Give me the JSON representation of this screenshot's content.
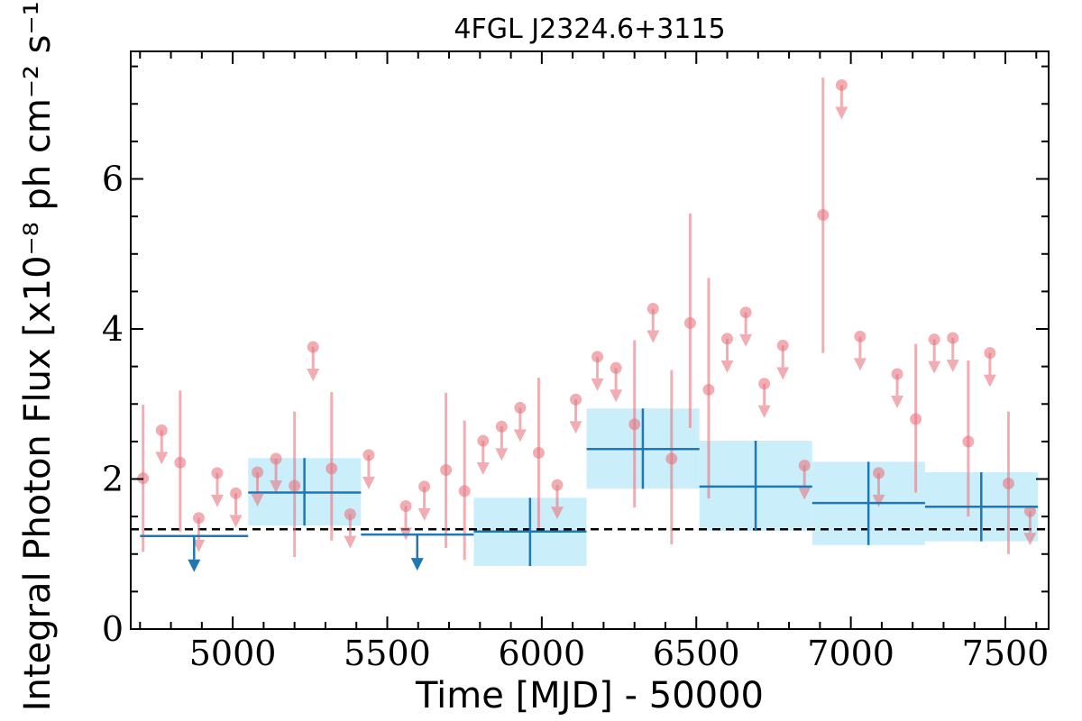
{
  "chart_data": {
    "type": "scatter",
    "title": "4FGL J2324.6+3115",
    "xlabel": "Time [MJD] - 50000",
    "ylabel": "Integral Photon Flux [x10⁻⁸ ph cm⁻² s⁻¹]",
    "xlim": [
      4670,
      7640
    ],
    "ylim": [
      0,
      7.7
    ],
    "xticks": [
      5000,
      5500,
      6000,
      6500,
      7000,
      7500
    ],
    "yticks": [
      0,
      2,
      4,
      6
    ],
    "xtick_labels": [
      "5000",
      "5500",
      "6000",
      "6500",
      "7000",
      "7500"
    ],
    "ytick_labels": [
      "0",
      "2",
      "4",
      "6"
    ],
    "grid": false,
    "legend": "none",
    "average_flux": 1.33,
    "colors": {
      "short_bins": "#e8777e",
      "long_bins": "#1f77b4",
      "long_band": "#cbeefb",
      "average_line": "#000000"
    },
    "short_bins": {
      "detections": [
        {
          "x": 4710,
          "y": 2.01,
          "y_low": 1.03,
          "y_high": 2.99
        },
        {
          "x": 4830,
          "y": 2.22,
          "y_low": 1.3,
          "y_high": 3.18
        },
        {
          "x": 5200,
          "y": 1.91,
          "y_low": 0.96,
          "y_high": 2.9
        },
        {
          "x": 5320,
          "y": 2.14,
          "y_low": 1.18,
          "y_high": 3.16
        },
        {
          "x": 5690,
          "y": 2.12,
          "y_low": 1.08,
          "y_high": 3.15
        },
        {
          "x": 5750,
          "y": 1.84,
          "y_low": 0.92,
          "y_high": 2.78
        },
        {
          "x": 5990,
          "y": 2.35,
          "y_low": 1.35,
          "y_high": 3.35
        },
        {
          "x": 6300,
          "y": 2.73,
          "y_low": 1.62,
          "y_high": 3.85
        },
        {
          "x": 6420,
          "y": 2.27,
          "y_low": 1.13,
          "y_high": 3.45
        },
        {
          "x": 6480,
          "y": 4.08,
          "y_low": 2.68,
          "y_high": 5.54
        },
        {
          "x": 6540,
          "y": 3.19,
          "y_low": 1.74,
          "y_high": 4.68
        },
        {
          "x": 6910,
          "y": 5.52,
          "y_low": 3.68,
          "y_high": 7.35
        },
        {
          "x": 7210,
          "y": 2.8,
          "y_low": 1.82,
          "y_high": 3.8
        },
        {
          "x": 7380,
          "y": 2.5,
          "y_low": 1.5,
          "y_high": 3.58
        },
        {
          "x": 7510,
          "y": 1.94,
          "y_low": 1.0,
          "y_high": 2.9
        }
      ],
      "upper_limits": [
        {
          "x": 4770,
          "y": 2.65
        },
        {
          "x": 4890,
          "y": 1.48
        },
        {
          "x": 4950,
          "y": 2.08
        },
        {
          "x": 5010,
          "y": 1.81
        },
        {
          "x": 5080,
          "y": 2.09
        },
        {
          "x": 5140,
          "y": 2.27
        },
        {
          "x": 5260,
          "y": 3.76
        },
        {
          "x": 5380,
          "y": 1.53
        },
        {
          "x": 5440,
          "y": 2.32
        },
        {
          "x": 5560,
          "y": 1.64
        },
        {
          "x": 5620,
          "y": 1.9
        },
        {
          "x": 5810,
          "y": 2.51
        },
        {
          "x": 5870,
          "y": 2.7
        },
        {
          "x": 5930,
          "y": 2.95
        },
        {
          "x": 6050,
          "y": 1.92
        },
        {
          "x": 6110,
          "y": 3.06
        },
        {
          "x": 6180,
          "y": 3.63
        },
        {
          "x": 6240,
          "y": 3.48
        },
        {
          "x": 6360,
          "y": 4.27
        },
        {
          "x": 6600,
          "y": 3.87
        },
        {
          "x": 6660,
          "y": 4.22
        },
        {
          "x": 6720,
          "y": 3.27
        },
        {
          "x": 6780,
          "y": 3.78
        },
        {
          "x": 6850,
          "y": 2.18
        },
        {
          "x": 6970,
          "y": 7.25
        },
        {
          "x": 7030,
          "y": 3.9
        },
        {
          "x": 7090,
          "y": 2.08
        },
        {
          "x": 7150,
          "y": 3.4
        },
        {
          "x": 7270,
          "y": 3.86
        },
        {
          "x": 7330,
          "y": 3.88
        },
        {
          "x": 7450,
          "y": 3.68
        },
        {
          "x": 7580,
          "y": 1.57
        }
      ]
    },
    "long_bins": {
      "detections": [
        {
          "x_start": 5050,
          "x_end": 5415,
          "x_center": 5232,
          "y": 1.82,
          "y_low": 1.38,
          "y_high": 2.28
        },
        {
          "x_start": 5780,
          "x_end": 6145,
          "x_center": 5962,
          "y": 1.3,
          "y_low": 0.84,
          "y_high": 1.75
        },
        {
          "x_start": 6145,
          "x_end": 6510,
          "x_center": 6327,
          "y": 2.4,
          "y_low": 1.87,
          "y_high": 2.94
        },
        {
          "x_start": 6510,
          "x_end": 6875,
          "x_center": 6692,
          "y": 1.9,
          "y_low": 1.31,
          "y_high": 2.51
        },
        {
          "x_start": 6875,
          "x_end": 7240,
          "x_center": 7057,
          "y": 1.68,
          "y_low": 1.12,
          "y_high": 2.23
        },
        {
          "x_start": 7240,
          "x_end": 7605,
          "x_center": 7422,
          "y": 1.63,
          "y_low": 1.17,
          "y_high": 2.09
        }
      ],
      "upper_limits": [
        {
          "x_start": 4700,
          "x_end": 5050,
          "x_center": 4875,
          "y": 1.24
        },
        {
          "x_start": 5415,
          "x_end": 5780,
          "x_center": 5597,
          "y": 1.26
        }
      ]
    }
  }
}
